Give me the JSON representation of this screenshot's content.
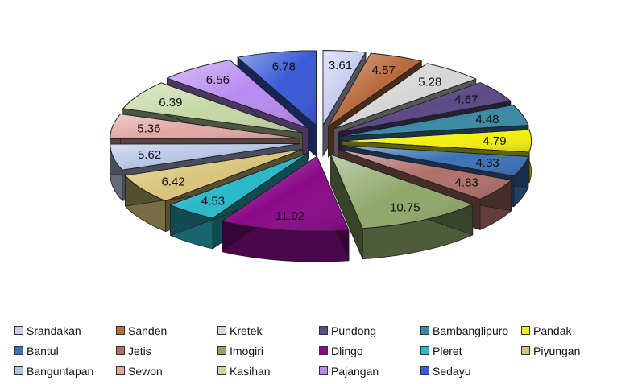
{
  "chart_data": {
    "type": "pie",
    "title": "",
    "exploded": true,
    "three_d": true,
    "legend_position": "bottom",
    "slices": [
      {
        "name": "Srandakan",
        "value": 3.61,
        "color": "#c8cdf0"
      },
      {
        "name": "Sanden",
        "value": 4.57,
        "color": "#b86a3c"
      },
      {
        "name": "Kretek",
        "value": 5.28,
        "color": "#d6d6d6"
      },
      {
        "name": "Pundong",
        "value": 4.67,
        "color": "#5b4a86"
      },
      {
        "name": "Bambanglipuro",
        "value": 4.48,
        "color": "#3a8aa6"
      },
      {
        "name": "Pandak",
        "value": 4.79,
        "color": "#f2ef10"
      },
      {
        "name": "Bantul",
        "value": 4.33,
        "color": "#3d72b8"
      },
      {
        "name": "Jetis",
        "value": 4.83,
        "color": "#b0706a"
      },
      {
        "name": "Imogiri",
        "value": 10.75,
        "color": "#8fa86a"
      },
      {
        "name": "Dlingo",
        "value": 11.02,
        "color": "#8a0a8a"
      },
      {
        "name": "Pleret",
        "value": 4.53,
        "color": "#2bb8c8"
      },
      {
        "name": "Piyungan",
        "value": 6.42,
        "color": "#d8c47a"
      },
      {
        "name": "Banguntapan",
        "value": 5.62,
        "color": "#b4c4e4"
      },
      {
        "name": "Sewon",
        "value": 5.36,
        "color": "#e0a8a4"
      },
      {
        "name": "Kasihan",
        "value": 6.39,
        "color": "#c4d8a4"
      },
      {
        "name": "Pajangan",
        "value": 6.56,
        "color": "#b88af0"
      },
      {
        "name": "Sedayu",
        "value": 6.78,
        "color": "#3a5ad8"
      }
    ]
  },
  "legend": {
    "rows": [
      [
        "Srandakan",
        "Sanden",
        "Kretek",
        "Pundong",
        "Bambanglipuro",
        "Pandak"
      ],
      [
        "Bantul",
        "Jetis",
        "Imogiri",
        "Dlingo",
        "Pleret",
        "Piyungan"
      ],
      [
        "Banguntapan",
        "Sewon",
        "Kasihan",
        "Pajangan",
        "Sedayu"
      ]
    ]
  }
}
